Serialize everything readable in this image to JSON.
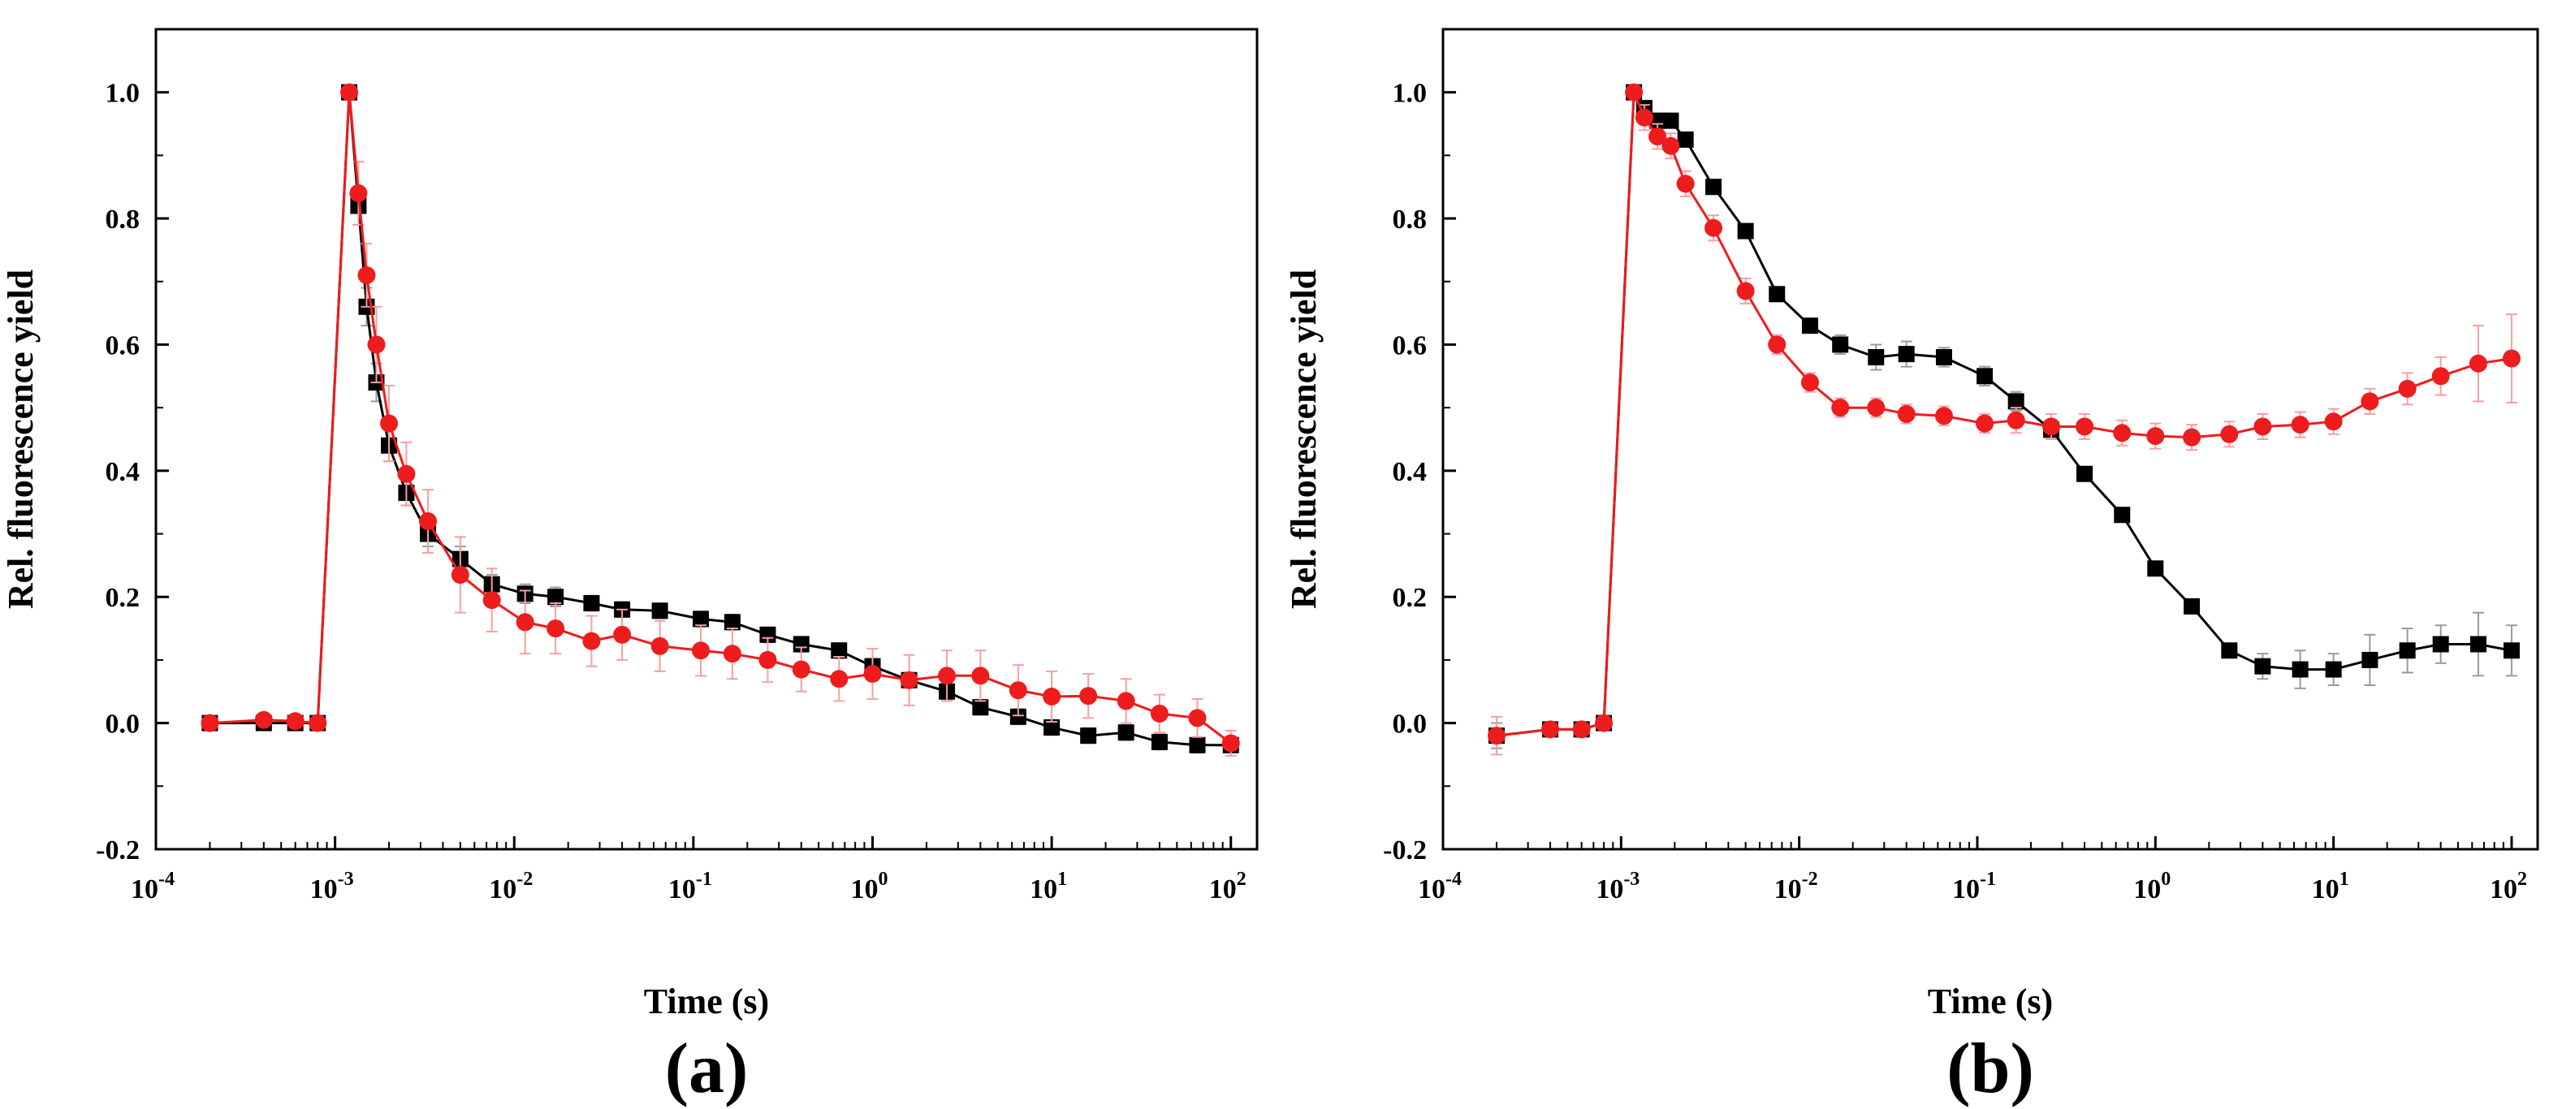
{
  "chart_data": [
    {
      "panel_label": "(a)",
      "type": "scatter",
      "xlabel": "Time (s)",
      "ylabel": "Rel. fluorescence yield",
      "xscale": "log",
      "xlim": [
        0.0001,
        140
      ],
      "ylim": [
        -0.2,
        1.1
      ],
      "x_ticks": [
        {
          "value": 0.0001,
          "base": "10",
          "exp": "-4"
        },
        {
          "value": 0.001,
          "base": "10",
          "exp": "-3"
        },
        {
          "value": 0.01,
          "base": "10",
          "exp": "-2"
        },
        {
          "value": 0.1,
          "base": "10",
          "exp": "-1"
        },
        {
          "value": 1,
          "base": "10",
          "exp": "0"
        },
        {
          "value": 10,
          "base": "10",
          "exp": "1"
        },
        {
          "value": 100,
          "base": "10",
          "exp": "2"
        }
      ],
      "y_ticks": [
        {
          "value": -0.2,
          "label": "-0.2"
        },
        {
          "value": 0.0,
          "label": "0.0"
        },
        {
          "value": 0.2,
          "label": "0.2"
        },
        {
          "value": 0.4,
          "label": "0.4"
        },
        {
          "value": 0.6,
          "label": "0.6"
        },
        {
          "value": 0.8,
          "label": "0.8"
        },
        {
          "value": 1.0,
          "label": "1.0"
        }
      ],
      "series": [
        {
          "name": "black squares",
          "color": "#000000",
          "marker": "square",
          "x": [
            0.0002,
            0.0004,
            0.0006,
            0.0008,
            0.0012,
            0.00135,
            0.0015,
            0.0017,
            0.002,
            0.0025,
            0.0033,
            0.005,
            0.0075,
            0.0115,
            0.017,
            0.027,
            0.04,
            0.065,
            0.11,
            0.165,
            0.26,
            0.4,
            0.65,
            1.0,
            1.6,
            2.6,
            4.0,
            6.5,
            10,
            16,
            26,
            40,
            65,
            100
          ],
          "y": [
            0.0,
            0.0,
            0.0,
            0.0,
            1.0,
            0.82,
            0.66,
            0.54,
            0.44,
            0.365,
            0.3,
            0.26,
            0.22,
            0.205,
            0.2,
            0.19,
            0.18,
            0.178,
            0.165,
            0.16,
            0.14,
            0.125,
            0.115,
            0.09,
            0.068,
            0.05,
            0.025,
            0.01,
            -0.007,
            -0.02,
            -0.015,
            -0.03,
            -0.035,
            -0.035
          ],
          "err": [
            0.005,
            0.005,
            0.005,
            0.005,
            0,
            0.03,
            0.03,
            0.03,
            0.025,
            0.02,
            0.02,
            0.02,
            0.015,
            0.015,
            0.015,
            0.012,
            0.012,
            0.012,
            0.012,
            0.012,
            0.012,
            0.012,
            0.012,
            0.012,
            0.012,
            0.012,
            0.012,
            0.012,
            0.012,
            0.012,
            0.012,
            0.012,
            0.012,
            0.012
          ]
        },
        {
          "name": "red circles",
          "color": "#ee1c1c",
          "marker": "circle",
          "x": [
            0.0002,
            0.0004,
            0.0006,
            0.0008,
            0.0012,
            0.00135,
            0.0015,
            0.0017,
            0.002,
            0.0025,
            0.0033,
            0.005,
            0.0075,
            0.0115,
            0.017,
            0.027,
            0.04,
            0.065,
            0.11,
            0.165,
            0.26,
            0.4,
            0.65,
            1.0,
            1.6,
            2.6,
            4.0,
            6.5,
            10,
            16,
            26,
            40,
            65,
            100
          ],
          "y": [
            0.0,
            0.005,
            0.003,
            0.0,
            1.0,
            0.84,
            0.71,
            0.6,
            0.475,
            0.395,
            0.32,
            0.235,
            0.195,
            0.16,
            0.15,
            0.13,
            0.14,
            0.122,
            0.115,
            0.11,
            0.1,
            0.085,
            0.07,
            0.078,
            0.068,
            0.075,
            0.075,
            0.052,
            0.042,
            0.043,
            0.035,
            0.015,
            0.008,
            -0.032
          ],
          "err": [
            0.01,
            0.01,
            0.01,
            0.01,
            0,
            0.05,
            0.05,
            0.06,
            0.06,
            0.05,
            0.05,
            0.06,
            0.05,
            0.05,
            0.04,
            0.04,
            0.04,
            0.04,
            0.04,
            0.04,
            0.035,
            0.035,
            0.035,
            0.04,
            0.04,
            0.04,
            0.04,
            0.04,
            0.04,
            0.035,
            0.035,
            0.03,
            0.03,
            0.02
          ]
        }
      ]
    },
    {
      "panel_label": "(b)",
      "type": "scatter",
      "xlabel": "Time (s)",
      "ylabel": "Rel. fluorescence yield",
      "xscale": "log",
      "xlim": [
        0.0001,
        140
      ],
      "ylim": [
        -0.2,
        1.1
      ],
      "x_ticks": [
        {
          "value": 0.0001,
          "base": "10",
          "exp": "-4"
        },
        {
          "value": 0.001,
          "base": "10",
          "exp": "-3"
        },
        {
          "value": 0.01,
          "base": "10",
          "exp": "-2"
        },
        {
          "value": 0.1,
          "base": "10",
          "exp": "-1"
        },
        {
          "value": 1,
          "base": "10",
          "exp": "0"
        },
        {
          "value": 10,
          "base": "10",
          "exp": "1"
        },
        {
          "value": 100,
          "base": "10",
          "exp": "2"
        }
      ],
      "y_ticks": [
        {
          "value": -0.2,
          "label": "-0.2"
        },
        {
          "value": 0.0,
          "label": "0.0"
        },
        {
          "value": 0.2,
          "label": "0.2"
        },
        {
          "value": 0.4,
          "label": "0.4"
        },
        {
          "value": 0.6,
          "label": "0.6"
        },
        {
          "value": 0.8,
          "label": "0.8"
        },
        {
          "value": 1.0,
          "label": "1.0"
        }
      ],
      "series": [
        {
          "name": "black squares",
          "color": "#000000",
          "marker": "square",
          "x": [
            0.0002,
            0.0004,
            0.0006,
            0.0008,
            0.00118,
            0.00135,
            0.0016,
            0.0019,
            0.0023,
            0.0033,
            0.005,
            0.0075,
            0.0115,
            0.017,
            0.027,
            0.04,
            0.065,
            0.11,
            0.165,
            0.26,
            0.4,
            0.65,
            1.0,
            1.6,
            2.6,
            4.0,
            6.5,
            10,
            16,
            26,
            40,
            65,
            100
          ],
          "y": [
            -0.02,
            -0.01,
            -0.01,
            0.0,
            1.0,
            0.975,
            0.955,
            0.955,
            0.925,
            0.85,
            0.78,
            0.68,
            0.63,
            0.6,
            0.58,
            0.585,
            0.58,
            0.55,
            0.51,
            0.465,
            0.395,
            0.33,
            0.245,
            0.185,
            0.115,
            0.09,
            0.085,
            0.085,
            0.1,
            0.115,
            0.125,
            0.125,
            0.115
          ],
          "err": [
            0.02,
            0.01,
            0.01,
            0.01,
            0,
            0.01,
            0.01,
            0.01,
            0.01,
            0.01,
            0.01,
            0.01,
            0.01,
            0.015,
            0.02,
            0.02,
            0.015,
            0.015,
            0.015,
            0.015,
            0.01,
            0.01,
            0.01,
            0.01,
            0.01,
            0.02,
            0.03,
            0.025,
            0.04,
            0.035,
            0.03,
            0.05,
            0.04
          ]
        },
        {
          "name": "red circles",
          "color": "#ee1c1c",
          "marker": "circle",
          "x": [
            0.0002,
            0.0004,
            0.0006,
            0.0008,
            0.00118,
            0.00135,
            0.0016,
            0.0019,
            0.0023,
            0.0033,
            0.005,
            0.0075,
            0.0115,
            0.017,
            0.027,
            0.04,
            0.065,
            0.11,
            0.165,
            0.26,
            0.4,
            0.65,
            1.0,
            1.6,
            2.6,
            4.0,
            6.5,
            10,
            16,
            26,
            40,
            65,
            100
          ],
          "y": [
            -0.02,
            -0.01,
            -0.01,
            0.0,
            1.0,
            0.96,
            0.93,
            0.915,
            0.855,
            0.785,
            0.685,
            0.6,
            0.54,
            0.5,
            0.5,
            0.49,
            0.487,
            0.475,
            0.48,
            0.47,
            0.47,
            0.46,
            0.455,
            0.453,
            0.458,
            0.47,
            0.473,
            0.478,
            0.51,
            0.53,
            0.55,
            0.57,
            0.578
          ],
          "err": [
            0.03,
            0.01,
            0.01,
            0.01,
            0,
            0.02,
            0.02,
            0.02,
            0.02,
            0.02,
            0.02,
            0.015,
            0.015,
            0.015,
            0.015,
            0.015,
            0.015,
            0.015,
            0.02,
            0.02,
            0.02,
            0.02,
            0.02,
            0.02,
            0.02,
            0.02,
            0.02,
            0.02,
            0.02,
            0.025,
            0.03,
            0.06,
            0.07
          ]
        }
      ]
    }
  ]
}
